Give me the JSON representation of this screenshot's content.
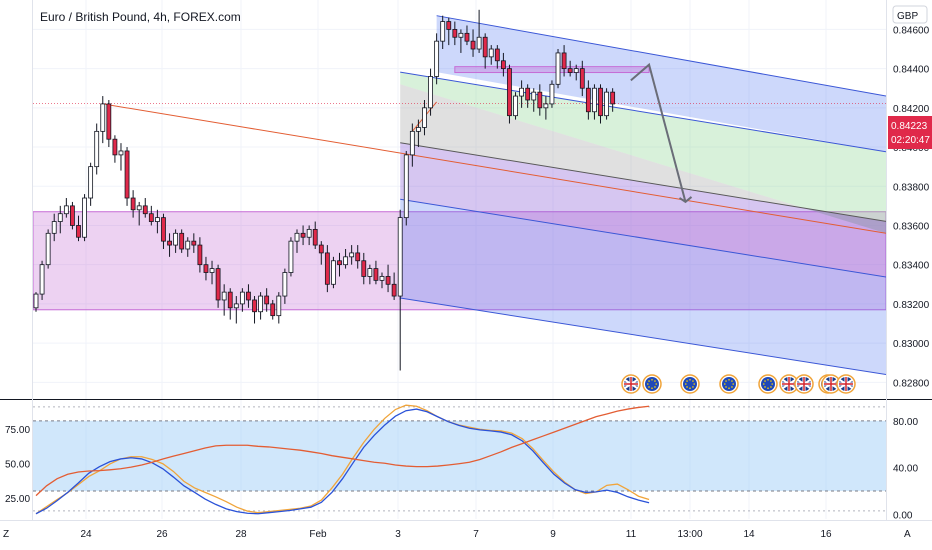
{
  "header": {
    "title": "Euro / British Pound, 4h, FOREX.com",
    "currency": "GBP"
  },
  "price_tag": {
    "price": "0.84223",
    "countdown": "02:20:47"
  },
  "corner_left": "Z",
  "corner_right": "A",
  "colors": {
    "up": "#ffffff",
    "down": "#e0294a",
    "outline": "#131722",
    "pink_zone": "#c56bd5",
    "channel_blue": "#3b57d6",
    "channel_green": "#8fd694",
    "median_line": "#e35d33",
    "osc_fast": "#2a52d8",
    "osc_slow": "#f0a43a",
    "osc_long": "#e35d33"
  },
  "chart_data": [
    {
      "type": "candlestick",
      "title": "Euro / British Pound, 4h, FOREX.com",
      "y_axis_ticks": [
        "0.84600",
        "0.84400",
        "0.84200",
        "0.84000",
        "0.83800",
        "0.83600",
        "0.83400",
        "0.83200",
        "0.83000",
        "0.82800"
      ],
      "x_axis_ticks": [
        "24",
        "26",
        "28",
        "Feb",
        "3",
        "7",
        "9",
        "11",
        "13:00",
        "14",
        "16"
      ],
      "ylim": [
        0.8272,
        0.8475
      ],
      "last_price": 0.84223,
      "annotations": {
        "demand_zone": {
          "top": 0.8367,
          "bottom": 0.8317,
          "x_start": "22",
          "x_end": "right-edge"
        },
        "supply_box": {
          "top": 0.8441,
          "bottom": 0.8438,
          "x_start": "4",
          "x_end": "11"
        },
        "pitchfork_channel": {
          "upper": [
            [
              0.8467,
              0.8426
            ]
          ],
          "lower_edge": [
            [
              0.8323,
              0.8284
            ]
          ],
          "median": [
            [
              0.8432,
              0.8356
            ]
          ]
        },
        "projection_arrow": {
          "from": 0.8442,
          "via": 0.8415,
          "to": 0.8372
        }
      },
      "candles": [
        [
          0.8318,
          0.8326,
          0.8316,
          0.8325
        ],
        [
          0.8325,
          0.8342,
          0.8322,
          0.834
        ],
        [
          0.834,
          0.8358,
          0.8338,
          0.8356
        ],
        [
          0.8356,
          0.8366,
          0.8352,
          0.8362
        ],
        [
          0.8362,
          0.837,
          0.8356,
          0.8366
        ],
        [
          0.8366,
          0.8374,
          0.8364,
          0.837
        ],
        [
          0.837,
          0.8372,
          0.8358,
          0.836
        ],
        [
          0.836,
          0.8365,
          0.8352,
          0.8354
        ],
        [
          0.8354,
          0.8376,
          0.8352,
          0.8374
        ],
        [
          0.8374,
          0.8392,
          0.837,
          0.839
        ],
        [
          0.839,
          0.8412,
          0.8386,
          0.8408
        ],
        [
          0.8408,
          0.8426,
          0.8402,
          0.8422
        ],
        [
          0.8422,
          0.8424,
          0.84,
          0.8404
        ],
        [
          0.8404,
          0.8406,
          0.8392,
          0.8396
        ],
        [
          0.8396,
          0.8402,
          0.8388,
          0.8398
        ],
        [
          0.8398,
          0.84,
          0.837,
          0.8374
        ],
        [
          0.8374,
          0.8378,
          0.8364,
          0.8368
        ],
        [
          0.8368,
          0.8372,
          0.836,
          0.837
        ],
        [
          0.837,
          0.8374,
          0.8364,
          0.8366
        ],
        [
          0.8366,
          0.837,
          0.836,
          0.8362
        ],
        [
          0.8362,
          0.8368,
          0.8356,
          0.8364
        ],
        [
          0.8364,
          0.8366,
          0.8348,
          0.8352
        ],
        [
          0.8352,
          0.8356,
          0.8344,
          0.835
        ],
        [
          0.835,
          0.8358,
          0.8346,
          0.8356
        ],
        [
          0.8356,
          0.8358,
          0.8346,
          0.8348
        ],
        [
          0.8348,
          0.8354,
          0.8344,
          0.8352
        ],
        [
          0.8352,
          0.8356,
          0.8346,
          0.835
        ],
        [
          0.835,
          0.8354,
          0.8336,
          0.834
        ],
        [
          0.834,
          0.8344,
          0.8332,
          0.8336
        ],
        [
          0.8336,
          0.8342,
          0.833,
          0.8338
        ],
        [
          0.8338,
          0.834,
          0.8318,
          0.8322
        ],
        [
          0.8322,
          0.833,
          0.8314,
          0.8326
        ],
        [
          0.8326,
          0.8328,
          0.8312,
          0.8318
        ],
        [
          0.8318,
          0.8324,
          0.831,
          0.832
        ],
        [
          0.832,
          0.8328,
          0.8316,
          0.8326
        ],
        [
          0.8326,
          0.833,
          0.8318,
          0.8322
        ],
        [
          0.8322,
          0.8324,
          0.831,
          0.8316
        ],
        [
          0.8316,
          0.8326,
          0.8312,
          0.8324
        ],
        [
          0.8324,
          0.8328,
          0.8316,
          0.832
        ],
        [
          0.832,
          0.8322,
          0.8312,
          0.8314
        ],
        [
          0.8314,
          0.8326,
          0.831,
          0.8324
        ],
        [
          0.8324,
          0.8338,
          0.832,
          0.8336
        ],
        [
          0.8336,
          0.8354,
          0.8334,
          0.8352
        ],
        [
          0.8352,
          0.8358,
          0.8346,
          0.8356
        ],
        [
          0.8356,
          0.836,
          0.835,
          0.8354
        ],
        [
          0.8354,
          0.836,
          0.835,
          0.8358
        ],
        [
          0.8358,
          0.8362,
          0.8348,
          0.835
        ],
        [
          0.835,
          0.8352,
          0.834,
          0.8346
        ],
        [
          0.8346,
          0.835,
          0.8326,
          0.833
        ],
        [
          0.833,
          0.8344,
          0.8328,
          0.8342
        ],
        [
          0.8342,
          0.8346,
          0.8334,
          0.834
        ],
        [
          0.834,
          0.8348,
          0.8338,
          0.8344
        ],
        [
          0.8344,
          0.835,
          0.834,
          0.8346
        ],
        [
          0.8346,
          0.835,
          0.8338,
          0.8342
        ],
        [
          0.8342,
          0.8346,
          0.833,
          0.8334
        ],
        [
          0.8334,
          0.834,
          0.833,
          0.8338
        ],
        [
          0.8338,
          0.8342,
          0.833,
          0.8332
        ],
        [
          0.8332,
          0.8336,
          0.8328,
          0.8334
        ],
        [
          0.8334,
          0.834,
          0.8326,
          0.833
        ],
        [
          0.833,
          0.8336,
          0.8322,
          0.8324
        ],
        [
          0.8324,
          0.8368,
          0.8286,
          0.8364
        ],
        [
          0.8364,
          0.8398,
          0.836,
          0.8396
        ],
        [
          0.8396,
          0.8412,
          0.839,
          0.8408
        ],
        [
          0.8408,
          0.8414,
          0.84,
          0.841
        ],
        [
          0.841,
          0.8424,
          0.8406,
          0.842
        ],
        [
          0.842,
          0.844,
          0.8416,
          0.8436
        ],
        [
          0.8436,
          0.8458,
          0.8432,
          0.8454
        ],
        [
          0.8454,
          0.8467,
          0.845,
          0.8464
        ],
        [
          0.8464,
          0.8466,
          0.8452,
          0.846
        ],
        [
          0.846,
          0.8464,
          0.8452,
          0.8456
        ],
        [
          0.8456,
          0.846,
          0.8448,
          0.8458
        ],
        [
          0.8458,
          0.8462,
          0.8452,
          0.8454
        ],
        [
          0.8454,
          0.846,
          0.8446,
          0.845
        ],
        [
          0.845,
          0.847,
          0.8448,
          0.8456
        ],
        [
          0.8456,
          0.8458,
          0.844,
          0.8446
        ],
        [
          0.8446,
          0.8452,
          0.8442,
          0.845
        ],
        [
          0.845,
          0.8452,
          0.844,
          0.8444
        ],
        [
          0.8444,
          0.8448,
          0.8436,
          0.844
        ],
        [
          0.844,
          0.8442,
          0.8412,
          0.8416
        ],
        [
          0.8416,
          0.8428,
          0.8414,
          0.8426
        ],
        [
          0.8426,
          0.8434,
          0.842,
          0.843
        ],
        [
          0.843,
          0.8432,
          0.842,
          0.8424
        ],
        [
          0.8424,
          0.843,
          0.8418,
          0.8428
        ],
        [
          0.8428,
          0.8432,
          0.8416,
          0.842
        ],
        [
          0.842,
          0.8426,
          0.8414,
          0.8422
        ],
        [
          0.8422,
          0.8434,
          0.842,
          0.8432
        ],
        [
          0.8432,
          0.845,
          0.843,
          0.8448
        ],
        [
          0.8448,
          0.8452,
          0.8436,
          0.844
        ],
        [
          0.844,
          0.8444,
          0.8436,
          0.8438
        ],
        [
          0.8438,
          0.8442,
          0.8434,
          0.844
        ],
        [
          0.844,
          0.8444,
          0.8426,
          0.843
        ],
        [
          0.843,
          0.8434,
          0.8414,
          0.8418
        ],
        [
          0.8418,
          0.8432,
          0.8414,
          0.843
        ],
        [
          0.843,
          0.8432,
          0.8412,
          0.8416
        ],
        [
          0.8416,
          0.843,
          0.8414,
          0.8428
        ],
        [
          0.8428,
          0.843,
          0.8418,
          0.8422
        ]
      ]
    },
    {
      "type": "line",
      "title": "",
      "y_axis_ticks_left": [
        "75.00",
        "50.00",
        "25.00"
      ],
      "y_axis_ticks_right": [
        "80.00",
        "40.00",
        "0.00"
      ],
      "left_ylim": [
        10,
        95
      ],
      "right_ylim": [
        -4,
        97
      ],
      "band": [
        20,
        80
      ],
      "series": [
        {
          "values": [
            0.5,
            6.6,
            12.7,
            18.5,
            25.4,
            32.4,
            37.2,
            43.1,
            47.4,
            49.3,
            49.3,
            46.9,
            43.3,
            36.7,
            28.2,
            22.6,
            18.8,
            15.0,
            10.8,
            6.1,
            2.8,
            1.4,
            2.3,
            3.3,
            4.2,
            5.2,
            7.1,
            12.2,
            22.6,
            34.3,
            48.4,
            61.5,
            72.8,
            82.2,
            89.7,
            93.4,
            92.5,
            88.7,
            83.5,
            79.3,
            76.5,
            74.6,
            72.8,
            71.8,
            71.4,
            69.5,
            64.8,
            56.3,
            46.0,
            36.2,
            27.7,
            21.1,
            17.8,
            19.2,
            24.8,
            25.9,
            21.1,
            15.5,
            12.7
          ]
        },
        {
          "values": [
            0.5,
            5.2,
            11.7,
            18.8,
            26.8,
            35.2,
            40.8,
            45.1,
            47.4,
            48.4,
            47.4,
            44.1,
            39.0,
            31.9,
            24.4,
            18.8,
            13.1,
            8.5,
            4.7,
            2.3,
            0.9,
            0.5,
            1.4,
            2.3,
            3.3,
            4.7,
            6.1,
            10.3,
            18.8,
            30.5,
            44.1,
            57.3,
            67.6,
            76.5,
            84.0,
            88.7,
            90.1,
            87.8,
            83.5,
            79.3,
            76.1,
            73.7,
            72.3,
            71.4,
            70.4,
            68.1,
            62.9,
            54.4,
            44.1,
            34.3,
            26.8,
            21.1,
            18.8,
            19.2,
            20.7,
            18.8,
            15.0,
            12.2,
            9.9
          ]
        },
        {
          "values": [
            16.0,
            24.4,
            30.5,
            34.3,
            36.2,
            37.1,
            37.4,
            38.1,
            39.0,
            40.4,
            42.2,
            44.6,
            47.4,
            49.8,
            52.1,
            54.4,
            56.8,
            58.6,
            59.1,
            59.1,
            59.1,
            58.2,
            57.7,
            56.8,
            55.8,
            54.9,
            53.5,
            52.1,
            50.2,
            48.8,
            47.4,
            46.0,
            44.6,
            43.7,
            42.2,
            41.3,
            40.8,
            40.8,
            41.3,
            42.2,
            43.3,
            44.6,
            46.9,
            50.2,
            53.5,
            57.3,
            60.5,
            63.8,
            67.1,
            70.4,
            73.7,
            77.0,
            80.3,
            83.6,
            85.9,
            88.3,
            90.1,
            91.5,
            92.5
          ]
        }
      ]
    }
  ],
  "calendar_events": [
    "gb-flag",
    "eu-flag",
    "eu-flag",
    "eu-flag",
    "eu-flag",
    "gb-flag",
    "gb-flag",
    "eu-flag",
    "gb-flag",
    "gb-flag",
    "eu-flag"
  ]
}
